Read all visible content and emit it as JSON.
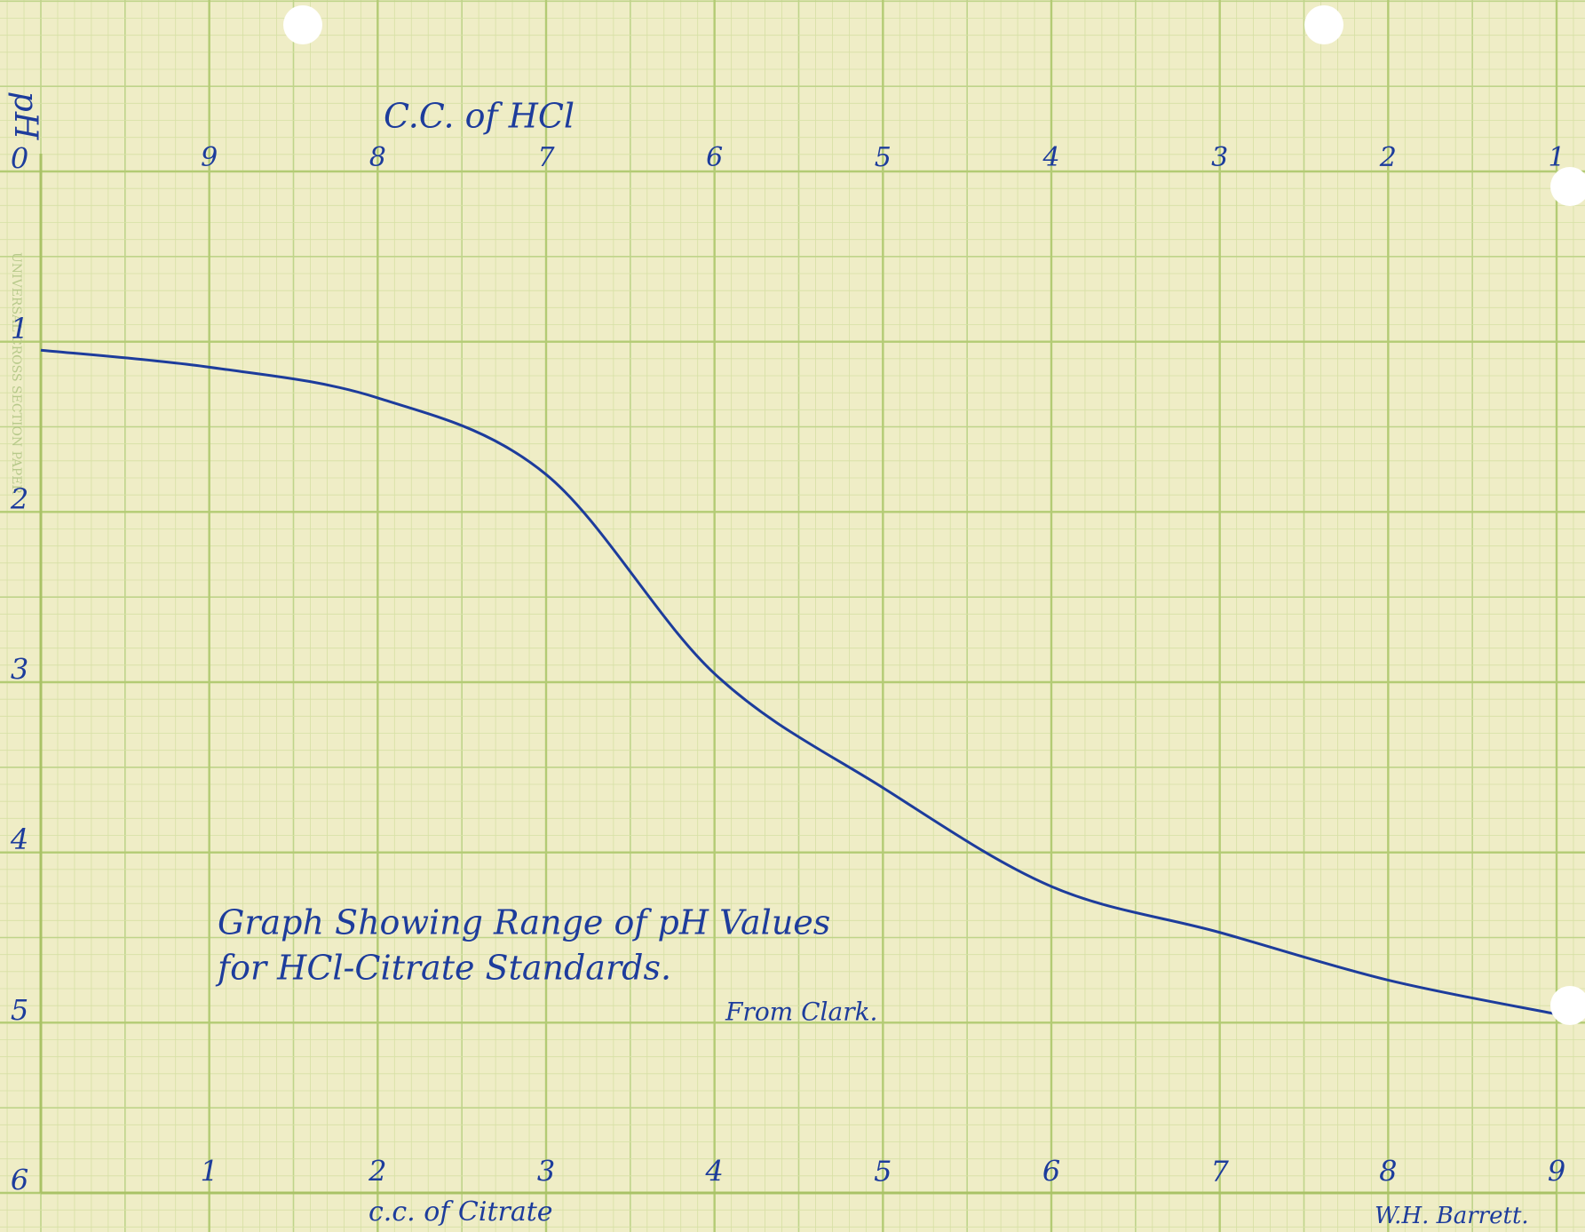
{
  "chart_data": {
    "type": "line",
    "title": [
      "Graph Showing Range of pH Values",
      "for HCl-Citrate Standards."
    ],
    "annotation": "From Clark.",
    "signature": "W.H. Barrett.",
    "paper_label": "UNIVERSAL CROSS SECTION PAPER",
    "xlabel": "c.c. of Citrate",
    "x2label": "C.C. of HCl",
    "ylabel": "pH",
    "x": [
      0,
      1,
      2,
      3,
      4,
      5,
      6,
      7,
      8,
      9
    ],
    "series": [
      {
        "color": "#1d3c9c",
        "values": [
          1.05,
          1.15,
          1.33,
          1.78,
          2.95,
          3.62,
          4.2,
          4.47,
          4.75,
          4.95
        ]
      }
    ],
    "xlim": [
      0,
      9
    ],
    "xticks": [
      1,
      2,
      3,
      4,
      5,
      6,
      7,
      8,
      9
    ],
    "x2lim": [
      10,
      1
    ],
    "x2ticks": [
      9,
      8,
      7,
      6,
      5,
      4,
      3,
      2,
      1
    ],
    "ylim": [
      6,
      0
    ],
    "yticks": [
      0,
      1,
      2,
      3,
      4,
      5,
      6
    ],
    "grid": true
  }
}
